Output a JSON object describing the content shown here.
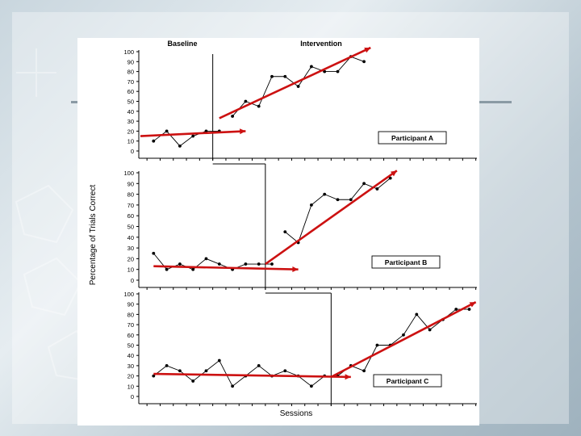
{
  "chart_data": {
    "type": "line",
    "title": "",
    "phase_labels": [
      "Baseline",
      "Intervention"
    ],
    "xlabel": "Sessions",
    "ylabel": "Percentage of Trials Correct",
    "ylim": [
      0,
      100
    ],
    "yticks": [
      0,
      10,
      20,
      30,
      40,
      50,
      60,
      70,
      80,
      90,
      100
    ],
    "sessions": 25,
    "panels": [
      {
        "label": "Participant A",
        "phase_change_after": 5.5,
        "baseline": {
          "x": [
            1,
            2,
            3,
            4,
            5,
            6
          ],
          "y": [
            10,
            20,
            5,
            15,
            20,
            20
          ]
        },
        "intervention": {
          "x": [
            7,
            8,
            9,
            10,
            11,
            12,
            13,
            14,
            15,
            16,
            17
          ],
          "y": [
            35,
            50,
            45,
            75,
            75,
            65,
            85,
            80,
            80,
            95,
            90
          ]
        },
        "trend_baseline": {
          "x": [
            0,
            8
          ],
          "y": [
            15,
            20
          ]
        },
        "trend_intervention": {
          "x": [
            6,
            17.5
          ],
          "y": [
            33,
            104
          ]
        }
      },
      {
        "label": "Participant B",
        "phase_change_after": 9.5,
        "baseline": {
          "x": [
            1,
            2,
            3,
            4,
            5,
            6,
            7,
            8,
            9,
            10
          ],
          "y": [
            25,
            10,
            15,
            10,
            20,
            15,
            10,
            15,
            15,
            15
          ]
        },
        "intervention": {
          "x": [
            11,
            12,
            13,
            14,
            15,
            16,
            17,
            18,
            19
          ],
          "y": [
            45,
            35,
            70,
            80,
            75,
            75,
            90,
            85,
            95
          ]
        },
        "trend_baseline": {
          "x": [
            1,
            12
          ],
          "y": [
            13,
            10
          ]
        },
        "trend_intervention": {
          "x": [
            9.5,
            19.5
          ],
          "y": [
            15,
            102
          ]
        }
      },
      {
        "label": "Participant C",
        "phase_change_after": 14.5,
        "baseline": {
          "x": [
            1,
            2,
            3,
            4,
            5,
            6,
            7,
            8,
            9,
            10,
            11,
            12,
            13,
            14
          ],
          "y": [
            20,
            30,
            25,
            15,
            25,
            35,
            10,
            20,
            30,
            20,
            25,
            20,
            10,
            20
          ]
        },
        "intervention": {
          "x": [
            15,
            16,
            17,
            18,
            19,
            20,
            21,
            22,
            23,
            24,
            25
          ],
          "y": [
            20,
            30,
            25,
            50,
            50,
            60,
            80,
            65,
            75,
            85,
            85
          ]
        },
        "trend_baseline": {
          "x": [
            1,
            16
          ],
          "y": [
            22,
            19
          ]
        },
        "trend_intervention": {
          "x": [
            14.5,
            25.5
          ],
          "y": [
            19,
            92
          ]
        }
      }
    ]
  }
}
